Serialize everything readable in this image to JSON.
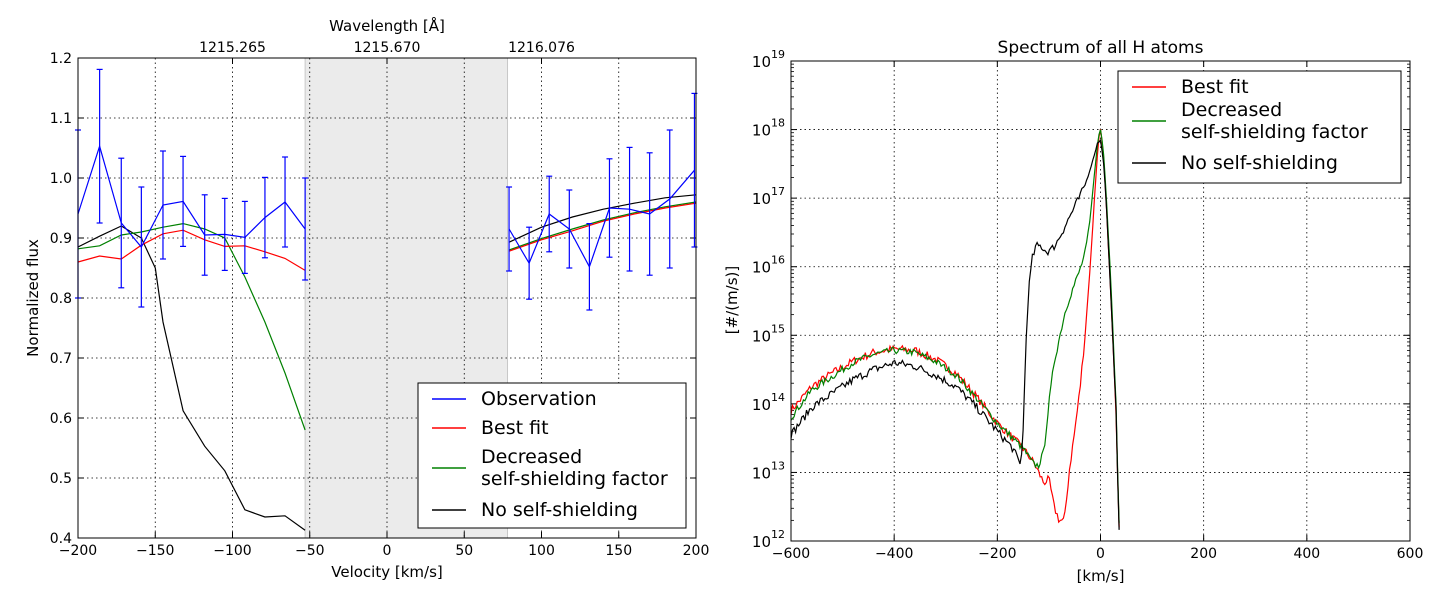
{
  "chart_data": [
    {
      "type": "line",
      "title": "",
      "xlabel": "Velocity [km/s]",
      "ylabel": "Normalized flux",
      "top_axis_label": "Wavelength [Å]",
      "top_ticks": [
        {
          "v": -100,
          "label": "1215.265"
        },
        {
          "v": 0,
          "label": "1215.670"
        },
        {
          "v": 100,
          "label": "1216.076"
        }
      ],
      "xlim": [
        -200,
        200
      ],
      "ylim": [
        0.4,
        1.2
      ],
      "xticks": [
        -200,
        -150,
        -100,
        -50,
        0,
        50,
        100,
        150,
        200
      ],
      "yticks": [
        0.4,
        0.5,
        0.6,
        0.7,
        0.8,
        0.9,
        1.0,
        1.1,
        1.2
      ],
      "xtick_labels": [
        "−200",
        "−150",
        "−100",
        "−50",
        "0",
        "50",
        "100",
        "150",
        "200"
      ],
      "ytick_labels": [
        "0.4",
        "0.5",
        "0.6",
        "0.7",
        "0.8",
        "0.9",
        "1.0",
        "1.1",
        "1.2"
      ],
      "grid": true,
      "shaded_region": [
        -53,
        78
      ],
      "legend": {
        "position": "bottom-right",
        "entries": [
          {
            "label": "Observation",
            "color": "#0000ff"
          },
          {
            "label": "Best fit",
            "color": "#ff0000"
          },
          {
            "label": "Decreased",
            "label2": "self-shielding factor",
            "color": "#008000"
          },
          {
            "label": "No self-shielding",
            "color": "#000000"
          }
        ]
      },
      "series": [
        {
          "name": "Observation",
          "color": "#0000ff",
          "errorbars": true,
          "segments": [
            [
              {
                "x": -200,
                "y": 0.94,
                "err": 0.14
              },
              {
                "x": -186,
                "y": 1.053,
                "err": 0.128
              },
              {
                "x": -172,
                "y": 0.925,
                "err": 0.108
              },
              {
                "x": -159,
                "y": 0.885,
                "err": 0.1
              },
              {
                "x": -145,
                "y": 0.955,
                "err": 0.09
              },
              {
                "x": -132,
                "y": 0.961,
                "err": 0.075
              },
              {
                "x": -118,
                "y": 0.905,
                "err": 0.067
              },
              {
                "x": -105,
                "y": 0.906,
                "err": 0.06
              },
              {
                "x": -92,
                "y": 0.901,
                "err": 0.06
              },
              {
                "x": -79,
                "y": 0.934,
                "err": 0.067
              },
              {
                "x": -66,
                "y": 0.96,
                "err": 0.075
              },
              {
                "x": -53,
                "y": 0.915,
                "err": 0.085
              }
            ],
            [
              {
                "x": 79,
                "y": 0.915,
                "err": 0.07
              },
              {
                "x": 92,
                "y": 0.858,
                "err": 0.06
              },
              {
                "x": 105,
                "y": 0.94,
                "err": 0.063
              },
              {
                "x": 118,
                "y": 0.915,
                "err": 0.065
              },
              {
                "x": 131,
                "y": 0.852,
                "err": 0.072
              },
              {
                "x": 144,
                "y": 0.95,
                "err": 0.082
              },
              {
                "x": 157,
                "y": 0.948,
                "err": 0.103
              },
              {
                "x": 170,
                "y": 0.94,
                "err": 0.102
              },
              {
                "x": 183,
                "y": 0.965,
                "err": 0.115
              },
              {
                "x": 199,
                "y": 1.013,
                "err": 0.128
              }
            ]
          ]
        },
        {
          "name": "Best fit",
          "color": "#ff0000",
          "segments": [
            [
              {
                "x": -200,
                "y": 0.86
              },
              {
                "x": -186,
                "y": 0.87
              },
              {
                "x": -172,
                "y": 0.865
              },
              {
                "x": -159,
                "y": 0.888
              },
              {
                "x": -145,
                "y": 0.907
              },
              {
                "x": -132,
                "y": 0.913
              },
              {
                "x": -118,
                "y": 0.897
              },
              {
                "x": -105,
                "y": 0.886
              },
              {
                "x": -92,
                "y": 0.887
              },
              {
                "x": -79,
                "y": 0.877
              },
              {
                "x": -66,
                "y": 0.866
              },
              {
                "x": -53,
                "y": 0.846
              }
            ],
            [
              {
                "x": 79,
                "y": 0.878
              },
              {
                "x": 100,
                "y": 0.897
              },
              {
                "x": 120,
                "y": 0.912
              },
              {
                "x": 140,
                "y": 0.928
              },
              {
                "x": 160,
                "y": 0.94
              },
              {
                "x": 180,
                "y": 0.95
              },
              {
                "x": 200,
                "y": 0.958
              }
            ]
          ]
        },
        {
          "name": "Decreased self-shielding factor",
          "color": "#008000",
          "segments": [
            [
              {
                "x": -200,
                "y": 0.882
              },
              {
                "x": -186,
                "y": 0.887
              },
              {
                "x": -172,
                "y": 0.905
              },
              {
                "x": -159,
                "y": 0.91
              },
              {
                "x": -145,
                "y": 0.918
              },
              {
                "x": -132,
                "y": 0.924
              },
              {
                "x": -118,
                "y": 0.915
              },
              {
                "x": -105,
                "y": 0.9
              },
              {
                "x": -92,
                "y": 0.835
              },
              {
                "x": -79,
                "y": 0.76
              },
              {
                "x": -66,
                "y": 0.675
              },
              {
                "x": -53,
                "y": 0.58
              }
            ],
            [
              {
                "x": 79,
                "y": 0.88
              },
              {
                "x": 100,
                "y": 0.899
              },
              {
                "x": 120,
                "y": 0.915
              },
              {
                "x": 140,
                "y": 0.93
              },
              {
                "x": 160,
                "y": 0.942
              },
              {
                "x": 180,
                "y": 0.952
              },
              {
                "x": 200,
                "y": 0.96
              }
            ]
          ]
        },
        {
          "name": "No self-shielding",
          "color": "#000000",
          "segments": [
            [
              {
                "x": -200,
                "y": 0.885
              },
              {
                "x": -186,
                "y": 0.903
              },
              {
                "x": -172,
                "y": 0.92
              },
              {
                "x": -159,
                "y": 0.9
              },
              {
                "x": -150,
                "y": 0.85
              },
              {
                "x": -145,
                "y": 0.76
              },
              {
                "x": -132,
                "y": 0.612
              },
              {
                "x": -118,
                "y": 0.553
              },
              {
                "x": -105,
                "y": 0.512
              },
              {
                "x": -92,
                "y": 0.447
              },
              {
                "x": -79,
                "y": 0.435
              },
              {
                "x": -66,
                "y": 0.437
              },
              {
                "x": -53,
                "y": 0.413
              }
            ],
            [
              {
                "x": 79,
                "y": 0.893
              },
              {
                "x": 100,
                "y": 0.918
              },
              {
                "x": 120,
                "y": 0.935
              },
              {
                "x": 140,
                "y": 0.948
              },
              {
                "x": 160,
                "y": 0.958
              },
              {
                "x": 180,
                "y": 0.967
              },
              {
                "x": 200,
                "y": 0.972
              }
            ]
          ]
        }
      ]
    },
    {
      "type": "line",
      "title": "Spectrum of all H atoms",
      "xlabel": "[km/s]",
      "ylabel": "[#/(m/s)]",
      "yscale": "log",
      "xlim": [
        -600,
        600
      ],
      "ylim_exp": [
        12,
        19
      ],
      "xticks": [
        -600,
        -400,
        -200,
        0,
        200,
        400,
        600
      ],
      "xtick_labels": [
        "−600",
        "−400",
        "−200",
        "0",
        "200",
        "400",
        "600"
      ],
      "ytick_exps": [
        12,
        13,
        14,
        15,
        16,
        17,
        18,
        19
      ],
      "ytick_base": "10",
      "ytick_exp_labels": [
        "12",
        "13",
        "14",
        "15",
        "16",
        "17",
        "18",
        "19"
      ],
      "grid": true,
      "legend": {
        "position": "top-right",
        "entries": [
          {
            "label": "Best fit",
            "color": "#ff0000"
          },
          {
            "label": "Decreased",
            "label2": "self-shielding factor",
            "color": "#008000"
          },
          {
            "label": "No self-shielding",
            "color": "#000000"
          }
        ]
      },
      "series": [
        {
          "name": "Best fit",
          "color": "#ff0000",
          "noise": 0.06,
          "points": [
            [
              -600,
              13.9
            ],
            [
              -560,
              14.25
            ],
            [
              -520,
              14.45
            ],
            [
              -480,
              14.62
            ],
            [
              -440,
              14.75
            ],
            [
              -400,
              14.8
            ],
            [
              -360,
              14.78
            ],
            [
              -320,
              14.65
            ],
            [
              -280,
              14.45
            ],
            [
              -240,
              14.1
            ],
            [
              -200,
              13.72
            ],
            [
              -170,
              13.5
            ],
            [
              -150,
              13.35
            ],
            [
              -130,
              13.15
            ],
            [
              -120,
              13.0
            ],
            [
              -110,
              12.85
            ],
            [
              -100,
              12.9
            ],
            [
              -90,
              12.5
            ],
            [
              -80,
              12.3
            ],
            [
              -70,
              12.3
            ],
            [
              -60,
              13.05
            ],
            [
              -50,
              13.6
            ],
            [
              -40,
              14.2
            ],
            [
              -30,
              15.0
            ],
            [
              -20,
              16.0
            ],
            [
              -10,
              17.2
            ],
            [
              -4,
              17.85
            ],
            [
              0,
              18.0
            ],
            [
              5,
              17.7
            ],
            [
              10,
              17.1
            ],
            [
              20,
              15.6
            ],
            [
              30,
              13.9
            ],
            [
              36,
              12.25
            ]
          ]
        },
        {
          "name": "Decreased self-shielding factor",
          "color": "#008000",
          "noise": 0.05,
          "points": [
            [
              -600,
              13.8
            ],
            [
              -560,
              14.2
            ],
            [
              -520,
              14.4
            ],
            [
              -480,
              14.6
            ],
            [
              -440,
              14.72
            ],
            [
              -400,
              14.78
            ],
            [
              -360,
              14.75
            ],
            [
              -320,
              14.62
            ],
            [
              -280,
              14.42
            ],
            [
              -240,
              14.08
            ],
            [
              -200,
              13.72
            ],
            [
              -170,
              13.5
            ],
            [
              -150,
              13.35
            ],
            [
              -130,
              13.12
            ],
            [
              -120,
              13.1
            ],
            [
              -110,
              13.3
            ],
            [
              -100,
              14.0
            ],
            [
              -90,
              14.6
            ],
            [
              -80,
              14.95
            ],
            [
              -70,
              15.3
            ],
            [
              -60,
              15.55
            ],
            [
              -50,
              15.75
            ],
            [
              -40,
              15.95
            ],
            [
              -30,
              16.2
            ],
            [
              -20,
              16.7
            ],
            [
              -10,
              17.5
            ],
            [
              -4,
              17.9
            ],
            [
              0,
              18.0
            ],
            [
              5,
              17.75
            ],
            [
              10,
              17.2
            ],
            [
              20,
              15.8
            ],
            [
              30,
              14.0
            ],
            [
              36,
              12.3
            ]
          ]
        },
        {
          "name": "No self-shielding",
          "color": "#000000",
          "noise": 0.06,
          "points": [
            [
              -600,
              13.55
            ],
            [
              -560,
              13.95
            ],
            [
              -520,
              14.15
            ],
            [
              -480,
              14.35
            ],
            [
              -440,
              14.5
            ],
            [
              -400,
              14.6
            ],
            [
              -360,
              14.55
            ],
            [
              -320,
              14.42
            ],
            [
              -280,
              14.25
            ],
            [
              -240,
              13.95
            ],
            [
              -200,
              13.6
            ],
            [
              -170,
              13.35
            ],
            [
              -155,
              13.1
            ],
            [
              -150,
              13.6
            ],
            [
              -145,
              14.8
            ],
            [
              -140,
              15.6
            ],
            [
              -133,
              16.1
            ],
            [
              -125,
              16.3
            ],
            [
              -115,
              16.3
            ],
            [
              -105,
              16.22
            ],
            [
              -95,
              16.25
            ],
            [
              -85,
              16.35
            ],
            [
              -75,
              16.5
            ],
            [
              -65,
              16.65
            ],
            [
              -55,
              16.8
            ],
            [
              -45,
              16.95
            ],
            [
              -35,
              17.1
            ],
            [
              -25,
              17.3
            ],
            [
              -15,
              17.55
            ],
            [
              -6,
              17.8
            ],
            [
              0,
              17.85
            ],
            [
              5,
              17.6
            ],
            [
              10,
              17.1
            ],
            [
              20,
              15.6
            ],
            [
              30,
              13.9
            ],
            [
              36,
              12.2
            ]
          ]
        }
      ]
    }
  ]
}
